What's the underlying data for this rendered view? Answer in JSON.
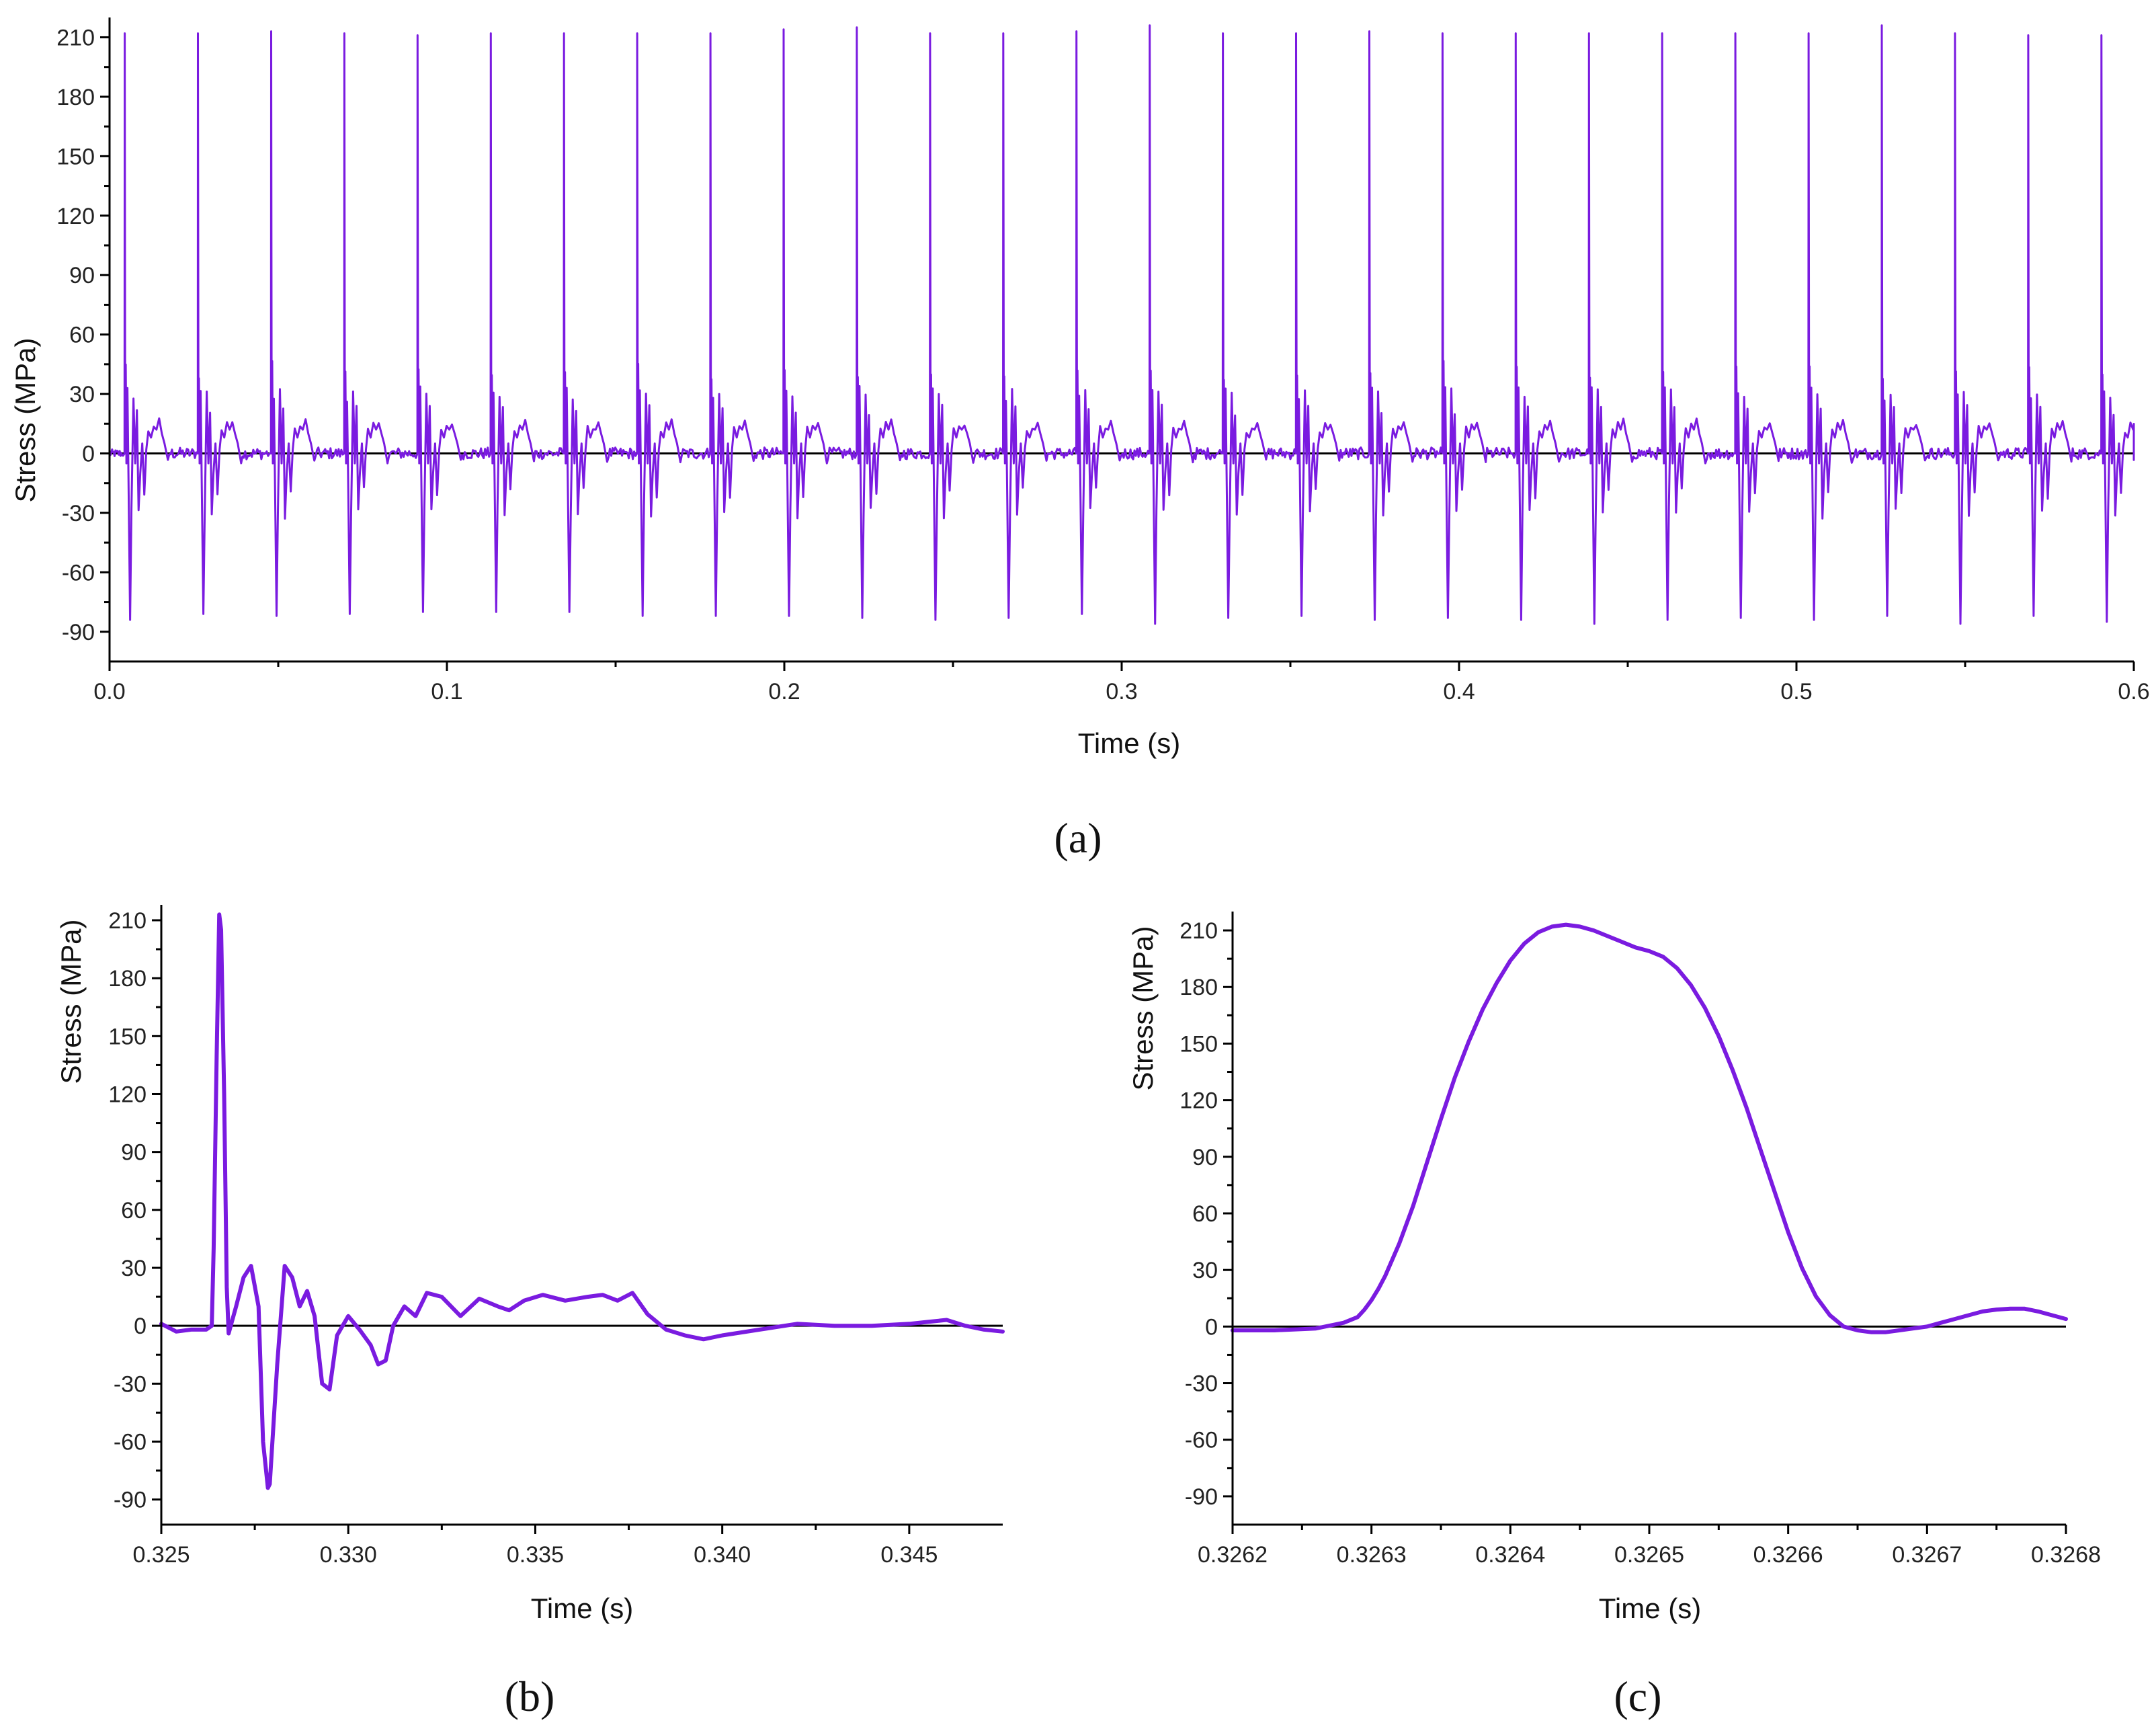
{
  "style": {
    "series_color": "#7a1be0",
    "axis_color": "#000000"
  },
  "chart_data": [
    {
      "id": "a",
      "type": "line",
      "panel_label": "(a)",
      "title": "",
      "xlabel": "Time (s)",
      "ylabel": "Stress (MPa)",
      "xlim": [
        0,
        0.6
      ],
      "ylim": [
        -105,
        220
      ],
      "xticks": [
        0,
        0.1,
        0.2,
        0.3,
        0.4,
        0.5,
        0.6
      ],
      "xtick_labels": [
        "0.0",
        "0.1",
        "0.2",
        "0.3",
        "0.4",
        "0.5",
        "0.6"
      ],
      "yticks": [
        -90,
        -60,
        -30,
        0,
        30,
        60,
        90,
        120,
        150,
        180,
        210
      ],
      "ytick_labels": [
        "-90",
        "-60",
        "-30",
        "0",
        "30",
        "60",
        "90",
        "120",
        "150",
        "180",
        "210"
      ],
      "impact_period_s": 0.0217,
      "impacts": [
        {
          "t": 0.0045,
          "peak": 212,
          "min": -84
        },
        {
          "t": 0.0262,
          "peak": 212,
          "min": -81
        },
        {
          "t": 0.0479,
          "peak": 213,
          "min": -82
        },
        {
          "t": 0.0696,
          "peak": 212,
          "min": -81
        },
        {
          "t": 0.0913,
          "peak": 211,
          "min": -80
        },
        {
          "t": 0.113,
          "peak": 212,
          "min": -80
        },
        {
          "t": 0.1347,
          "peak": 212,
          "min": -80
        },
        {
          "t": 0.1564,
          "peak": 212,
          "min": -82
        },
        {
          "t": 0.1781,
          "peak": 212,
          "min": -82
        },
        {
          "t": 0.1998,
          "peak": 214,
          "min": -82
        },
        {
          "t": 0.2215,
          "peak": 215,
          "min": -83
        },
        {
          "t": 0.2432,
          "peak": 212,
          "min": -84
        },
        {
          "t": 0.2649,
          "peak": 212,
          "min": -83
        },
        {
          "t": 0.2866,
          "peak": 213,
          "min": -81
        },
        {
          "t": 0.3083,
          "peak": 216,
          "min": -86
        },
        {
          "t": 0.33,
          "peak": 212,
          "min": -83
        },
        {
          "t": 0.3517,
          "peak": 212,
          "min": -82
        },
        {
          "t": 0.3734,
          "peak": 213,
          "min": -84
        },
        {
          "t": 0.3951,
          "peak": 212,
          "min": -83
        },
        {
          "t": 0.4168,
          "peak": 212,
          "min": -84
        },
        {
          "t": 0.4385,
          "peak": 212,
          "min": -86
        },
        {
          "t": 0.4602,
          "peak": 212,
          "min": -84
        },
        {
          "t": 0.4819,
          "peak": 212,
          "min": -83
        },
        {
          "t": 0.5036,
          "peak": 212,
          "min": -84
        },
        {
          "t": 0.5253,
          "peak": 216,
          "min": -82
        },
        {
          "t": 0.547,
          "peak": 212,
          "min": -86
        },
        {
          "t": 0.5687,
          "peak": 211,
          "min": -82
        },
        {
          "t": 0.5904,
          "peak": 211,
          "min": -85
        }
      ]
    },
    {
      "id": "b",
      "type": "line",
      "panel_label": "(b)",
      "title": "",
      "xlabel": "Time (s)",
      "ylabel": "Stress (MPa)",
      "xlim": [
        0.325,
        0.3475
      ],
      "ylim": [
        -103,
        218
      ],
      "xticks": [
        0.325,
        0.33,
        0.335,
        0.34,
        0.345
      ],
      "xtick_labels": [
        "0.325",
        "0.330",
        "0.335",
        "0.340",
        "0.345"
      ],
      "yticks": [
        -90,
        -60,
        -30,
        0,
        30,
        60,
        90,
        120,
        150,
        180,
        210
      ],
      "ytick_labels": [
        "-90",
        "-60",
        "-30",
        "0",
        "30",
        "60",
        "90",
        "120",
        "150",
        "180",
        "210"
      ],
      "x": [
        0.325,
        0.3254,
        0.3258,
        0.3262,
        0.32635,
        0.3264,
        0.32648,
        0.32655,
        0.3266,
        0.32668,
        0.32675,
        0.3268,
        0.327,
        0.3272,
        0.3274,
        0.3276,
        0.32772,
        0.32785,
        0.3279,
        0.3281,
        0.3283,
        0.3285,
        0.3287,
        0.3289,
        0.3291,
        0.3293,
        0.3295,
        0.3297,
        0.33,
        0.3303,
        0.3306,
        0.3308,
        0.331,
        0.3312,
        0.3315,
        0.3318,
        0.3321,
        0.3325,
        0.333,
        0.3335,
        0.334,
        0.3343,
        0.3347,
        0.3352,
        0.3358,
        0.3364,
        0.3368,
        0.3372,
        0.3376,
        0.338,
        0.3385,
        0.339,
        0.3395,
        0.34,
        0.341,
        0.342,
        0.343,
        0.344,
        0.345,
        0.3455,
        0.346,
        0.3465,
        0.347,
        0.3475
      ],
      "values": [
        1,
        -3,
        -2,
        -2,
        0,
        40,
        140,
        213,
        205,
        120,
        20,
        -4,
        10,
        25,
        31,
        10,
        -60,
        -84,
        -82,
        -20,
        31,
        25,
        10,
        18,
        5,
        -30,
        -33,
        -5,
        5,
        -2,
        -10,
        -20,
        -18,
        0,
        10,
        5,
        17,
        15,
        5,
        14,
        10,
        8,
        13,
        16,
        13,
        15,
        16,
        13,
        17,
        6,
        -2,
        -5,
        -7,
        -5,
        -2,
        1,
        0,
        0,
        1,
        2,
        3,
        0,
        -2,
        -3
      ]
    },
    {
      "id": "c",
      "type": "line",
      "panel_label": "(c)",
      "title": "",
      "xlabel": "Time (s)",
      "ylabel": "Stress (MPa)",
      "xlim": [
        0.3262,
        0.3268
      ],
      "ylim": [
        -105,
        220
      ],
      "xticks": [
        0.3262,
        0.3263,
        0.3264,
        0.3265,
        0.3266,
        0.3267,
        0.3268
      ],
      "xtick_labels": [
        "0.3262",
        "0.3263",
        "0.3264",
        "0.3265",
        "0.3266",
        "0.3267",
        "0.3268"
      ],
      "yticks": [
        -90,
        -60,
        -30,
        0,
        30,
        60,
        90,
        120,
        150,
        180,
        210
      ],
      "ytick_labels": [
        "-90",
        "-60",
        "-30",
        "0",
        "30",
        "60",
        "90",
        "120",
        "150",
        "180",
        "210"
      ],
      "x": [
        0.3262,
        0.32623,
        0.32626,
        0.32628,
        0.32629,
        0.326295,
        0.3263,
        0.326305,
        0.32631,
        0.32632,
        0.32633,
        0.32634,
        0.32635,
        0.32636,
        0.32637,
        0.32638,
        0.32639,
        0.3264,
        0.32641,
        0.32642,
        0.32643,
        0.32644,
        0.32645,
        0.32646,
        0.32647,
        0.32648,
        0.32649,
        0.3265,
        0.32651,
        0.32652,
        0.32653,
        0.32654,
        0.32655,
        0.32656,
        0.32657,
        0.32658,
        0.32659,
        0.3266,
        0.32661,
        0.32662,
        0.32663,
        0.32664,
        0.32665,
        0.32666,
        0.326665,
        0.32667,
        0.32668,
        0.32669,
        0.3267,
        0.32671,
        0.32672,
        0.32673,
        0.32674,
        0.32675,
        0.32676,
        0.32677,
        0.32678,
        0.32679,
        0.3268
      ],
      "values": [
        -2,
        -2,
        -1,
        2,
        5,
        9,
        14,
        20,
        27,
        44,
        64,
        87,
        110,
        132,
        151,
        168,
        182,
        194,
        203,
        209,
        212,
        213,
        212,
        210,
        207,
        204,
        201,
        199,
        196,
        190,
        181,
        169,
        154,
        136,
        116,
        94,
        72,
        50,
        31,
        16,
        6,
        0,
        -2,
        -3,
        -3,
        -3,
        -2,
        -1,
        0,
        2,
        4,
        6,
        8,
        9,
        9.5,
        9.5,
        8,
        6,
        4
      ]
    }
  ]
}
